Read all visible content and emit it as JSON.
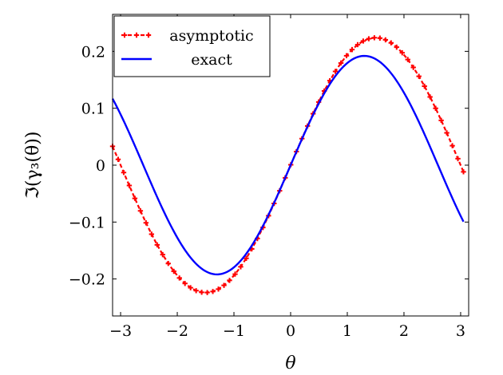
{
  "chart_data": {
    "type": "line",
    "title": "",
    "xlabel": "θ",
    "ylabel": "ℑ(γ₃(θ))",
    "xlim": [
      -3.14159,
      3.14159
    ],
    "ylim": [
      -0.265,
      0.265
    ],
    "grid": false,
    "legend_position": "top-left",
    "x_ticks": [
      {
        "value": -3,
        "label": "−3"
      },
      {
        "value": -2,
        "label": "−2"
      },
      {
        "value": -1,
        "label": "−1"
      },
      {
        "value": 0,
        "label": "0"
      },
      {
        "value": 1,
        "label": "1"
      },
      {
        "value": 2,
        "label": "2"
      },
      {
        "value": 3,
        "label": "3"
      }
    ],
    "y_ticks": [
      {
        "value": -0.2,
        "label": "−0.2"
      },
      {
        "value": -0.1,
        "label": "−0.1"
      },
      {
        "value": 0,
        "label": "0"
      },
      {
        "value": 0.1,
        "label": "0.1"
      },
      {
        "value": 0.2,
        "label": "0.2"
      }
    ],
    "series": [
      {
        "name": "asymptotic",
        "color": "#ff0000",
        "style": "dashed-with-plus-markers",
        "amplitude": 0.224,
        "peak_theta": 1.5,
        "x_start": -3.14159,
        "x_end": 3.05,
        "num_points": 64
      },
      {
        "name": "exact",
        "color": "#0000ff",
        "style": "solid",
        "amplitude": 0.192,
        "peak_theta": 1.3,
        "x_start": -3.14159,
        "x_end": 3.05,
        "num_points": 200
      }
    ]
  }
}
